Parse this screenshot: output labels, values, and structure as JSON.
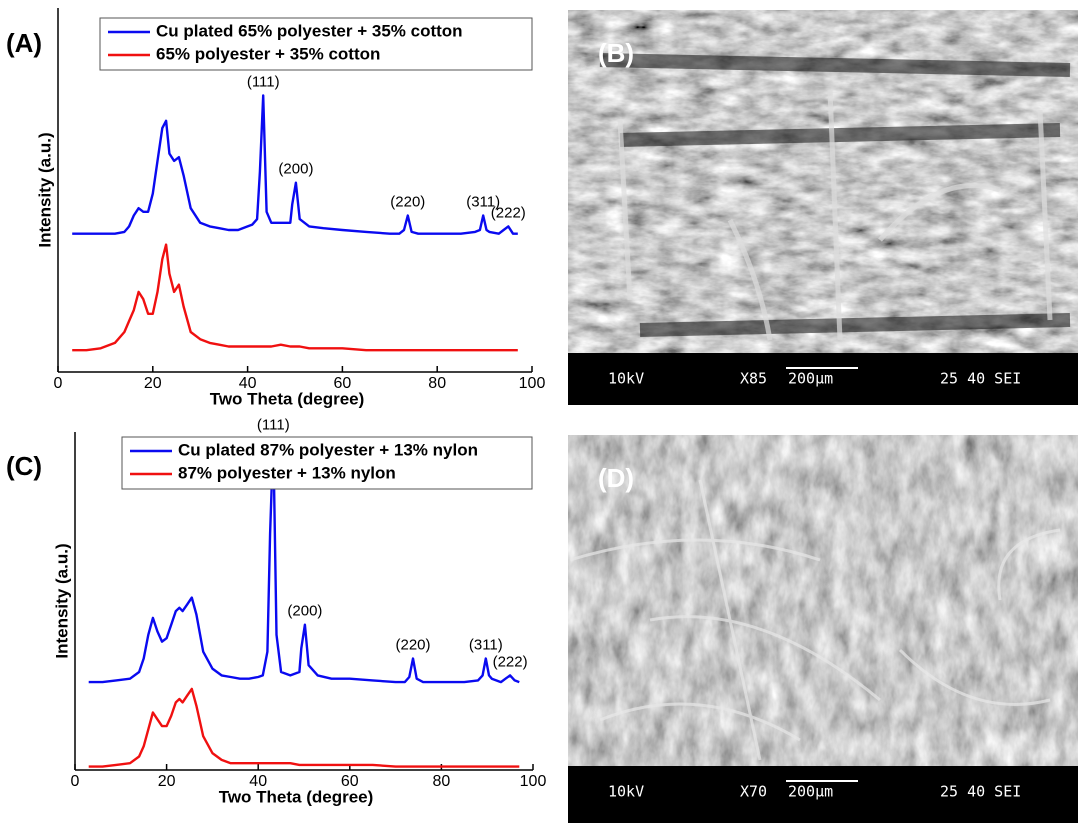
{
  "chart_data": [
    {
      "type": "line",
      "label": "(A)",
      "xlabel": "Two Theta (degree)",
      "ylabel": "Intensity (a.u.)",
      "xlim": [
        0,
        100
      ],
      "xticks": [
        0,
        20,
        40,
        60,
        80,
        100
      ],
      "ylim": [
        0,
        100
      ],
      "x": [
        3,
        6,
        9,
        12,
        14,
        15,
        16,
        17,
        18,
        19,
        20,
        21,
        22,
        22.8,
        23.5,
        24.5,
        25.5,
        26.5,
        28,
        30,
        32,
        34,
        36,
        38,
        40,
        41,
        42,
        42.6,
        43.3,
        44,
        45,
        47,
        49,
        49.4,
        50.2,
        51,
        53,
        56,
        60,
        65,
        70,
        72,
        73,
        73.8,
        74.6,
        76,
        80,
        85,
        88,
        89,
        89.7,
        90.4,
        91,
        93,
        94,
        95,
        96,
        97
      ],
      "series": [
        {
          "name": "Cu plated 65% polyester + 35% cotton",
          "color": "#0a0af0",
          "values": [
            38,
            38,
            38,
            38,
            38.5,
            40,
            43,
            45,
            44,
            44,
            49,
            58,
            67,
            69,
            60,
            58,
            59,
            54,
            45,
            41,
            40,
            39.5,
            39,
            39,
            40,
            40.5,
            42,
            55,
            76,
            44,
            41,
            41,
            41,
            46,
            52,
            42,
            40,
            39.5,
            39,
            38.5,
            38,
            38,
            39,
            43,
            38.5,
            38,
            38,
            38,
            38.5,
            39,
            43,
            39,
            38.5,
            38,
            39,
            40,
            38,
            38
          ]
        },
        {
          "name": "65% polyester + 35% cotton",
          "color": "#f01010",
          "values": [
            6,
            6,
            6.5,
            8,
            11,
            14,
            17,
            22,
            20,
            16,
            16,
            22,
            31,
            35,
            27,
            22,
            24,
            18,
            11,
            9,
            8,
            7.5,
            7,
            7,
            7,
            7,
            7,
            7,
            7,
            7,
            7,
            7.5,
            7,
            7,
            7,
            7,
            6.5,
            6.5,
            6.5,
            6,
            6,
            6,
            6,
            6,
            6,
            6,
            6,
            6,
            6,
            6,
            6,
            6,
            6,
            6,
            6,
            6,
            6,
            6
          ]
        }
      ],
      "annotations": [
        {
          "label": "(111)",
          "x": 43.3
        },
        {
          "label": "(200)",
          "x": 50.2
        },
        {
          "label": "(220)",
          "x": 73.8
        },
        {
          "label": "(311)",
          "x": 89.7
        },
        {
          "label": "(222)",
          "x": 95
        }
      ]
    },
    {
      "type": "line",
      "label": "(C)",
      "xlabel": "Two Theta (degree)",
      "ylabel": "Intensity (a.u.)",
      "xlim": [
        0,
        100
      ],
      "xticks": [
        0,
        20,
        40,
        60,
        80,
        100
      ],
      "ylim": [
        0,
        100
      ],
      "x": [
        3,
        6,
        9,
        12,
        14,
        15,
        16,
        17,
        18,
        19,
        20,
        21,
        22,
        22.8,
        23.5,
        24.5,
        25.5,
        26.5,
        28,
        30,
        32,
        34,
        36,
        38,
        40,
        41,
        42,
        42.6,
        43.3,
        44,
        45,
        47,
        49,
        49.4,
        50.2,
        51,
        53,
        56,
        60,
        65,
        70,
        72,
        73,
        73.8,
        74.6,
        76,
        80,
        85,
        88,
        89,
        89.7,
        90.4,
        91,
        93,
        94,
        95,
        96,
        97
      ],
      "series": [
        {
          "name": "Cu plated 87% polyester + 13% nylon",
          "color": "#0a0af0",
          "values": [
            26,
            26,
            26.5,
            27,
            29,
            33,
            40,
            45,
            41,
            38,
            39,
            43,
            47,
            48,
            47,
            49,
            51,
            46,
            35,
            30,
            28,
            27.5,
            27,
            27,
            27.5,
            28,
            35,
            70,
            98,
            40,
            29,
            28,
            29,
            36,
            43,
            31,
            28,
            27,
            27,
            26.5,
            26,
            26,
            27.5,
            33,
            27,
            26,
            26,
            26,
            26.5,
            28,
            33,
            28,
            27,
            26,
            27,
            28,
            26.5,
            26
          ]
        },
        {
          "name": "87% polyester + 13% nylon",
          "color": "#f01010",
          "values": [
            1,
            1,
            1.5,
            2,
            4,
            7,
            12,
            17,
            15,
            13,
            13,
            16,
            20,
            21,
            20,
            22,
            24,
            19,
            10,
            5,
            3,
            2,
            2,
            2,
            2,
            2,
            2,
            2,
            2,
            2,
            2,
            2,
            1.5,
            1.5,
            1.5,
            1.5,
            1.5,
            1.5,
            1.5,
            1.5,
            1,
            1,
            1,
            1,
            1,
            1,
            1,
            1,
            1,
            1,
            1,
            1,
            1,
            1,
            1,
            1,
            1,
            1
          ]
        }
      ],
      "annotations": [
        {
          "label": "(111)",
          "x": 43.3
        },
        {
          "label": "(200)",
          "x": 50.2
        },
        {
          "label": "(220)",
          "x": 73.8
        },
        {
          "label": "(311)",
          "x": 89.7
        },
        {
          "label": "(222)",
          "x": 95
        }
      ]
    }
  ],
  "images": [
    {
      "label": "(B)",
      "voltage": "10kV",
      "magnification": "X85",
      "scale": "200μm",
      "info": "25 40 SEI"
    },
    {
      "label": "(D)",
      "voltage": "10kV",
      "magnification": "X70",
      "scale": "200μm",
      "info": "25 40 SEI"
    }
  ]
}
